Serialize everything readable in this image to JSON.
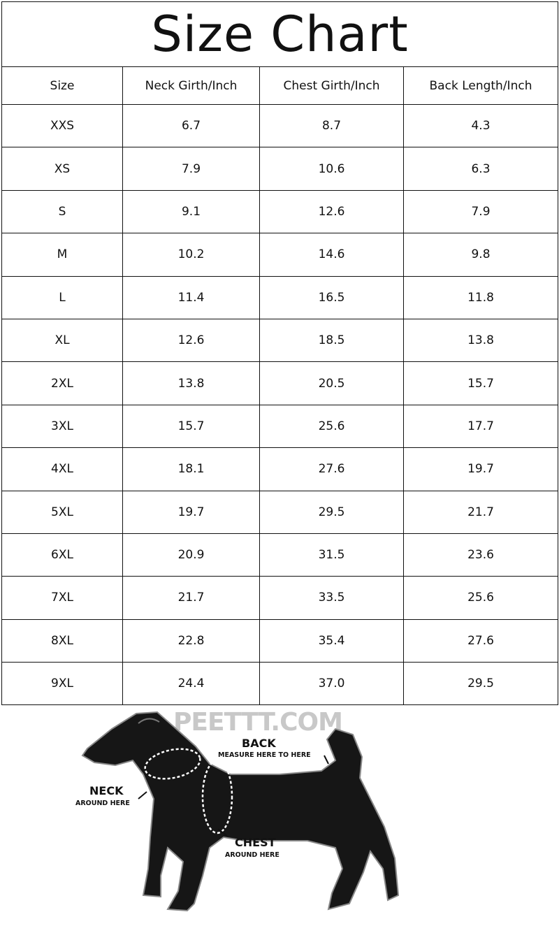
{
  "title": "Size Chart",
  "headers": [
    "Size",
    "Neck Girth/Inch",
    "Chest Girth/Inch",
    "Back Length/Inch"
  ],
  "rows": [
    [
      "XXS",
      "6.7",
      "8.7",
      "4.3"
    ],
    [
      "XS",
      "7.9",
      "10.6",
      "6.3"
    ],
    [
      "S",
      "9.1",
      "12.6",
      "7.9"
    ],
    [
      "M",
      "10.2",
      "14.6",
      "9.8"
    ],
    [
      "L",
      "11.4",
      "16.5",
      "11.8"
    ],
    [
      "XL",
      "12.6",
      "18.5",
      "13.8"
    ],
    [
      "2XL",
      "13.8",
      "20.5",
      "15.7"
    ],
    [
      "3XL",
      "15.7",
      "25.6",
      "17.7"
    ],
    [
      "4XL",
      "18.1",
      "27.6",
      "19.7"
    ],
    [
      "5XL",
      "19.7",
      "29.5",
      "21.7"
    ],
    [
      "6XL",
      "20.9",
      "31.5",
      "23.6"
    ],
    [
      "7XL",
      "21.7",
      "33.5",
      "25.6"
    ],
    [
      "8XL",
      "22.8",
      "35.4",
      "27.6"
    ],
    [
      "9XL",
      "24.4",
      "37.0",
      "29.5"
    ]
  ],
  "illustration": {
    "watermark": "PEETTT.COM",
    "back_label": "BACK",
    "back_sub": "MEASURE HERE TO HERE",
    "neck_label": "NECK",
    "neck_sub": "AROUND HERE",
    "chest_label": "CHEST",
    "chest_sub": "AROUND HERE"
  }
}
